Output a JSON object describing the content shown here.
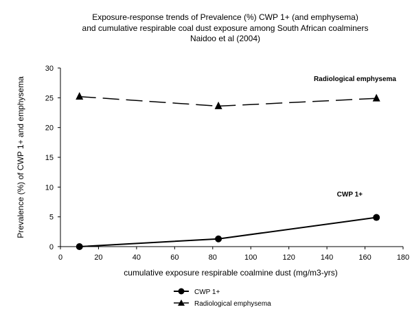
{
  "chart_data": {
    "type": "line",
    "title_lines": [
      "Exposure-response trends of Prevalence (%) CWP 1+ (and emphysema)",
      "and cumulative respirable coal dust exposure among South African coalminers",
      "Naidoo et al (2004)"
    ],
    "xlabel": "cumulative exposure respirable coalmine dust (mg/m3-yrs)",
    "ylabel": "Prevalence (%) of CWP 1+ and emphysema",
    "xlim": [
      0,
      180
    ],
    "ylim": [
      0,
      30
    ],
    "x_ticks": [
      0,
      20,
      40,
      60,
      80,
      100,
      120,
      140,
      160,
      180
    ],
    "y_ticks": [
      0,
      5,
      10,
      15,
      20,
      25,
      30
    ],
    "grid": false,
    "legend_position": "bottom-center",
    "series": [
      {
        "name": "CWP 1+",
        "marker": "circle",
        "line_style": "solid",
        "color": "#000000",
        "annotation": "CWP 1+",
        "points": [
          {
            "x": 10,
            "y": 0.0
          },
          {
            "x": 83,
            "y": 1.3
          },
          {
            "x": 166,
            "y": 4.9
          }
        ]
      },
      {
        "name": "Radiological emphysema",
        "marker": "triangle",
        "line_style": "dashed",
        "color": "#000000",
        "annotation": "Radiological emphysema",
        "points": [
          {
            "x": 10,
            "y": 25.2
          },
          {
            "x": 83,
            "y": 23.6
          },
          {
            "x": 166,
            "y": 24.9
          }
        ]
      }
    ]
  }
}
